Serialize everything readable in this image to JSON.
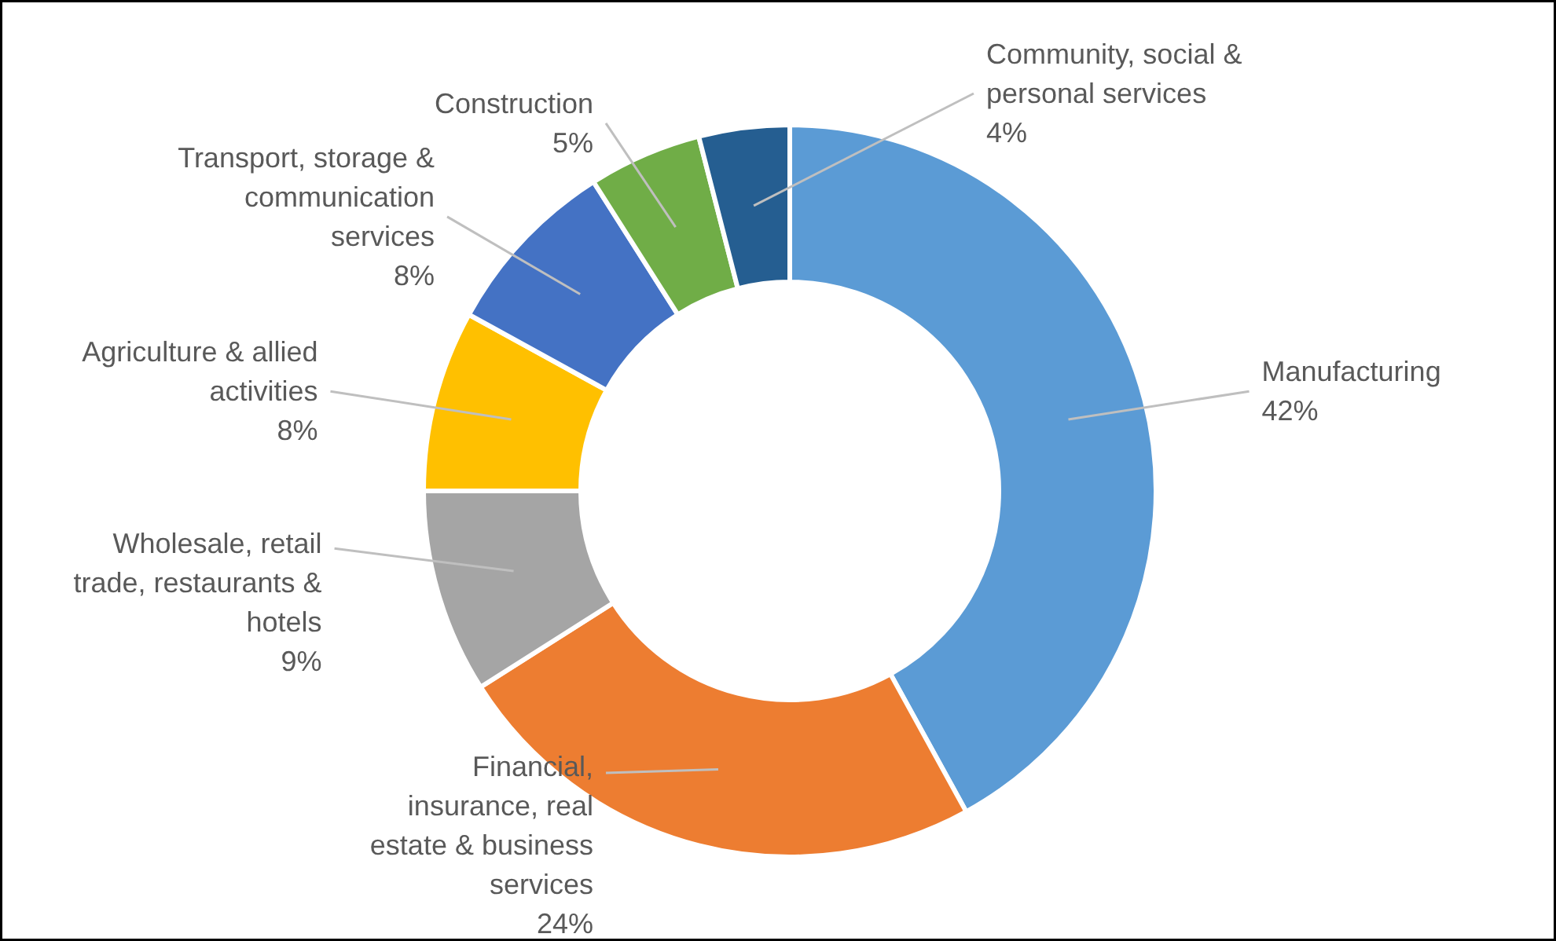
{
  "chart_data": {
    "type": "donut",
    "categories": [
      "Manufacturing",
      "Financial, insurance, real estate & business services",
      "Wholesale, retail trade, restaurants & hotels",
      "Agriculture & allied activities",
      "Transport, storage & communication services",
      "Construction",
      "Community, social & personal services"
    ],
    "values": [
      42,
      24,
      9,
      8,
      8,
      5,
      4
    ],
    "value_labels": [
      "42%",
      "24%",
      "9%",
      "8%",
      "8%",
      "5%",
      "4%"
    ],
    "colors": [
      "#5b9bd5",
      "#ed7d31",
      "#a5a5a5",
      "#ffc000",
      "#4472c4",
      "#70ad47",
      "#255e91"
    ]
  }
}
